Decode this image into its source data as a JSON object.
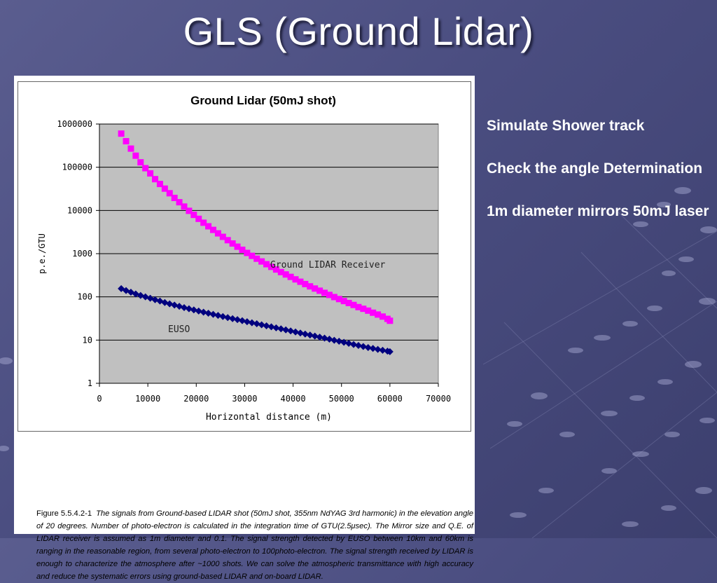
{
  "slide": {
    "title": "GLS (Ground Lidar)",
    "side_notes": [
      "Simulate Shower track",
      "Check the angle Determination",
      "1m diameter mirrors 50mJ laser"
    ],
    "caption": {
      "label": "Figure 5.5.4.2-1",
      "text": "The signals from Ground-based LIDAR shot (50mJ shot, 355nm NdYAG 3rd harmonic) in the elevation angle of 20 degrees. Number of photo-electron is calculated in the integration time of GTU(2.5μsec). The Mirror size and Q.E. of LIDAR receiver is assumed as 1m diameter and 0.1. The signal strength detected by EUSO between 10km and 60km is ranging in the reasonable region, from several photo-electron to 100photo-electron. The signal strength received by LIDAR is enough to characterize the atmosphere after ~1000 shots. We can solve the atmospheric transmittance with high accuracy and reduce the systematic errors using ground-based LIDAR and on-board LIDAR."
    },
    "colors": {
      "background": "#4a4d80",
      "plot_area": "#c0c0c0",
      "lidar_series": "#ff00ff",
      "euso_series": "#00007f"
    }
  },
  "chart_data": {
    "type": "scatter",
    "title": "Ground Lidar (50mJ shot)",
    "xlabel": "Horizontal distance (m)",
    "ylabel": "p.e./GTU",
    "xlim": [
      0,
      70000
    ],
    "ylim": [
      1,
      1000000
    ],
    "yscale": "log",
    "x_ticks": [
      "0",
      "10000",
      "20000",
      "30000",
      "40000",
      "50000",
      "60000",
      "70000"
    ],
    "y_ticks": [
      "1",
      "10",
      "100",
      "1000",
      "10000",
      "100000",
      "1000000"
    ],
    "grid": true,
    "series": [
      {
        "name": "Ground LIDAR Receiver",
        "color": "#ff00ff",
        "marker": "square",
        "x": [
          4500,
          5500,
          6500,
          7500,
          8500,
          9500,
          10500,
          11500,
          12500,
          13500,
          14500,
          15500,
          16500,
          17500,
          18500,
          19500,
          20500,
          21500,
          22500,
          23500,
          24500,
          25500,
          26500,
          27500,
          28500,
          29500,
          30500,
          31500,
          32500,
          33500,
          34500,
          35500,
          36500,
          37500,
          38500,
          39500,
          40500,
          41500,
          42500,
          43500,
          44500,
          45500,
          46500,
          47500,
          48500,
          49500,
          50500,
          51500,
          52500,
          53500,
          54500,
          55500,
          56500,
          57500,
          58500,
          59500,
          60000
        ],
        "y": [
          600000,
          400000,
          270000,
          185000,
          130000,
          95000,
          72000,
          53000,
          41000,
          32000,
          25000,
          19500,
          15500,
          12300,
          9800,
          7900,
          6400,
          5200,
          4300,
          3550,
          2950,
          2450,
          2050,
          1720,
          1450,
          1230,
          1040,
          890,
          765,
          660,
          570,
          495,
          430,
          375,
          330,
          290,
          254,
          224,
          198,
          175,
          156,
          139,
          124,
          111,
          99,
          89,
          80,
          72,
          65,
          58,
          53,
          48,
          43,
          39,
          35,
          31,
          28
        ]
      },
      {
        "name": "EUSO",
        "color": "#00007f",
        "marker": "diamond",
        "x": [
          4500,
          5500,
          6500,
          7500,
          8500,
          9500,
          10500,
          11500,
          12500,
          13500,
          14500,
          15500,
          16500,
          17500,
          18500,
          19500,
          20500,
          21500,
          22500,
          23500,
          24500,
          25500,
          26500,
          27500,
          28500,
          29500,
          30500,
          31500,
          32500,
          33500,
          34500,
          35500,
          36500,
          37500,
          38500,
          39500,
          40500,
          41500,
          42500,
          43500,
          44500,
          45500,
          46500,
          47500,
          48500,
          49500,
          50500,
          51500,
          52500,
          53500,
          54500,
          55500,
          56500,
          57500,
          58500,
          59500,
          60000
        ],
        "y": [
          155,
          140,
          128,
          117,
          108,
          100,
          93,
          86,
          80,
          74,
          69,
          64.5,
          60.5,
          56.5,
          53,
          50,
          47,
          44.3,
          41.8,
          39.4,
          37.2,
          35.1,
          33.2,
          31.4,
          29.7,
          28.1,
          26.6,
          25.2,
          23.9,
          22.6,
          21.4,
          20.3,
          19.2,
          18.2,
          17.2,
          16.3,
          15.4,
          14.6,
          13.8,
          13.1,
          12.4,
          11.7,
          11.1,
          10.5,
          9.9,
          9.4,
          8.9,
          8.4,
          7.9,
          7.5,
          7.1,
          6.7,
          6.4,
          6.1,
          5.8,
          5.55,
          5.4
        ]
      }
    ]
  }
}
